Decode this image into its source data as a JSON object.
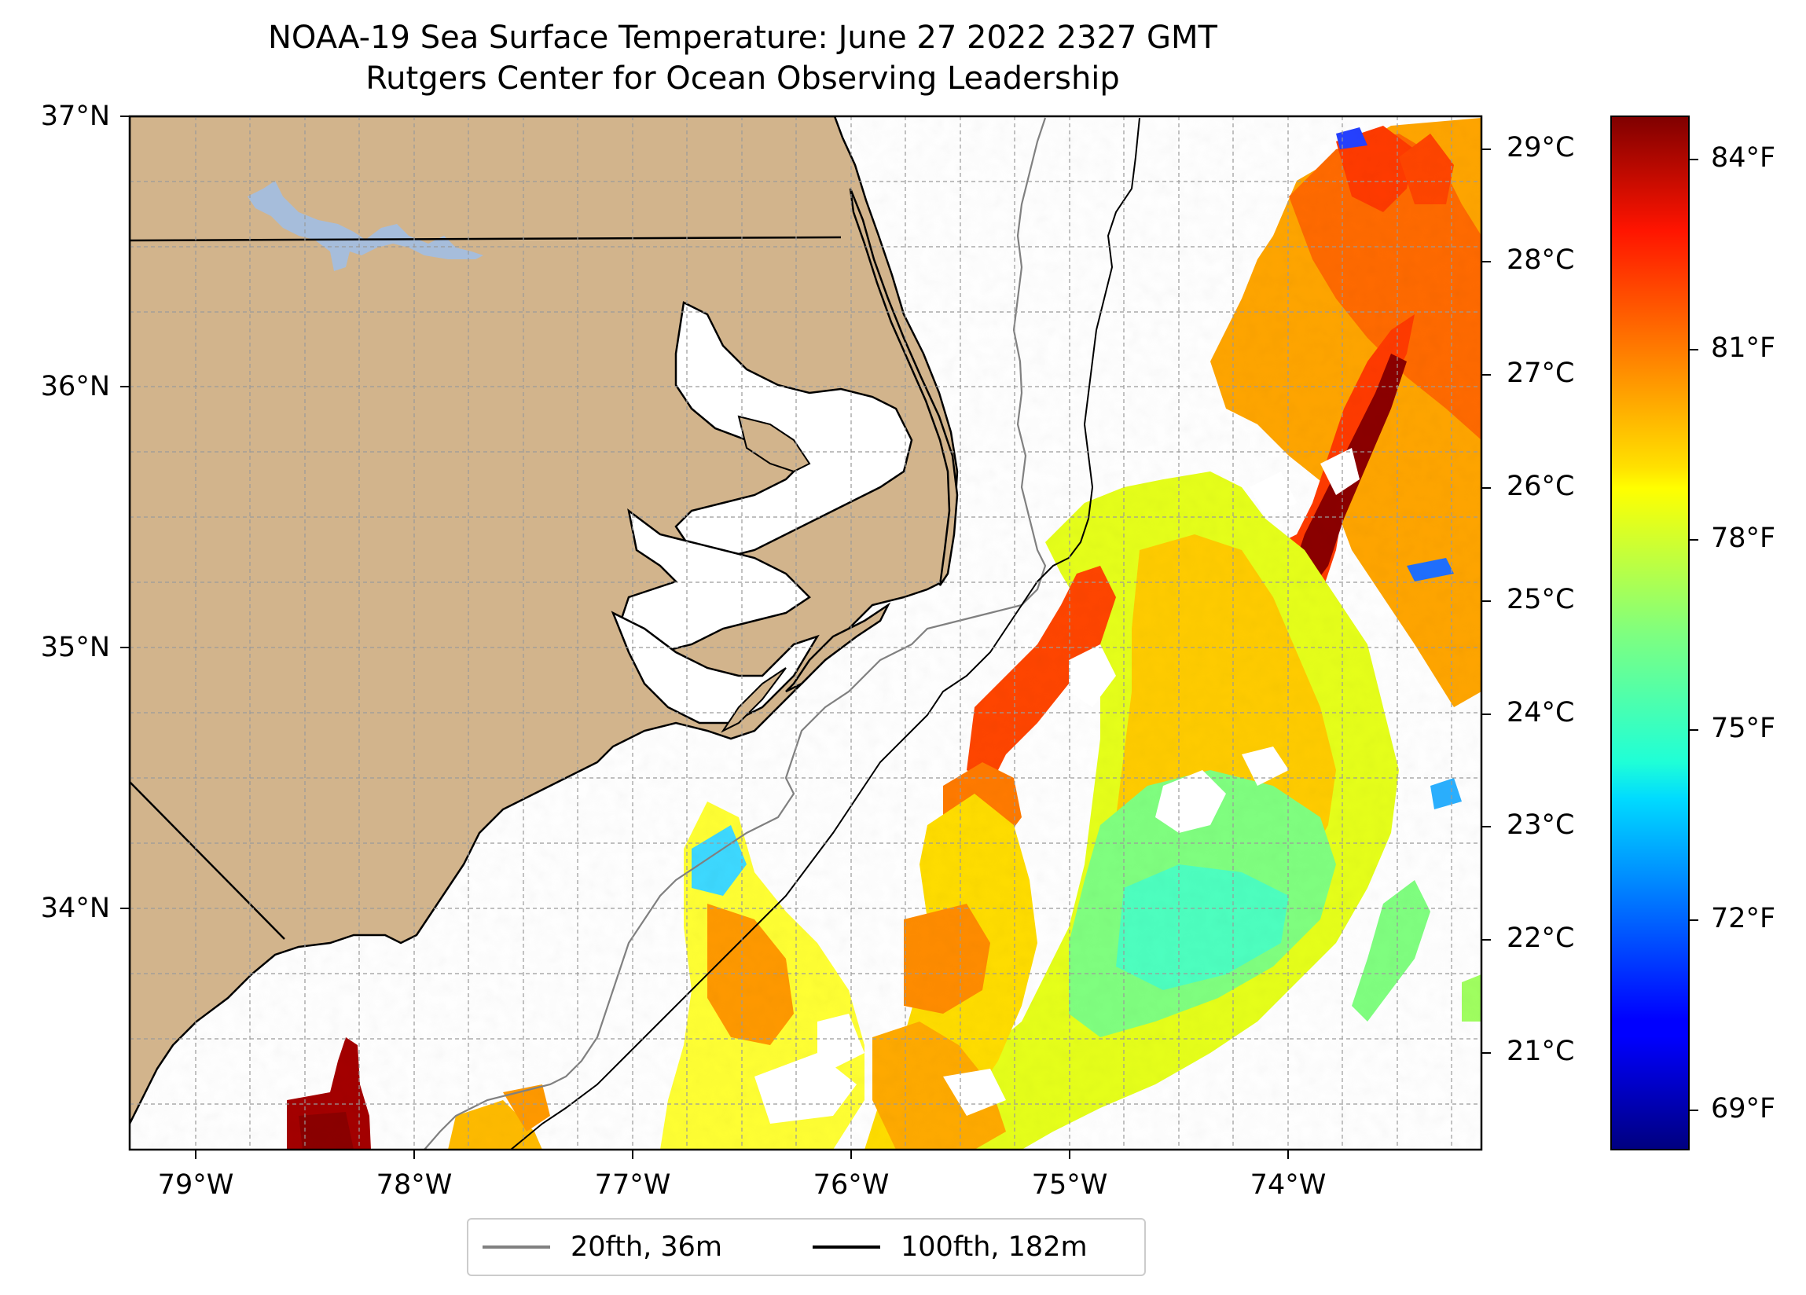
{
  "title": "NOAA-19 Sea Surface Temperature: June 27 2022 2327 GMT",
  "subtitle": "Rutgers Center for Ocean Observing Leadership",
  "map": {
    "lon_range": [
      -79.3,
      -73.15
    ],
    "lat_range": [
      33.1,
      37.0
    ],
    "lon_ticks": [
      "79°W",
      "78°W",
      "77°W",
      "76°W",
      "75°W",
      "74°W"
    ],
    "lon_tick_values": [
      -79,
      -78,
      -77,
      -76,
      -75,
      -74
    ],
    "lat_ticks": [
      "37°N",
      "36°N",
      "35°N",
      "34°N"
    ],
    "lat_tick_values": [
      37,
      36,
      35,
      34
    ],
    "celsius_ticks": [
      "29°C",
      "28°C",
      "27°C",
      "26°C",
      "25°C",
      "24°C",
      "23°C",
      "22°C",
      "21°C"
    ],
    "celsius_tick_values": [
      29,
      28,
      27,
      26,
      25,
      24,
      23,
      22,
      21
    ],
    "gridlines": true,
    "land_color": "#d2b48c",
    "lake_color": "#a6bddb",
    "ocean_color": "#ffffff"
  },
  "colorbar": {
    "colormap": "jet",
    "range_f": [
      68.2,
      84.5
    ],
    "ticks": [
      "84°F",
      "81°F",
      "78°F",
      "75°F",
      "72°F",
      "69°F"
    ],
    "tick_values": [
      84,
      81,
      78,
      75,
      72,
      69
    ]
  },
  "legend": {
    "placement": "below",
    "items": [
      {
        "label": "20fth, 36m",
        "color": "#808080"
      },
      {
        "label": "100fth, 182m",
        "color": "#000000"
      }
    ]
  }
}
